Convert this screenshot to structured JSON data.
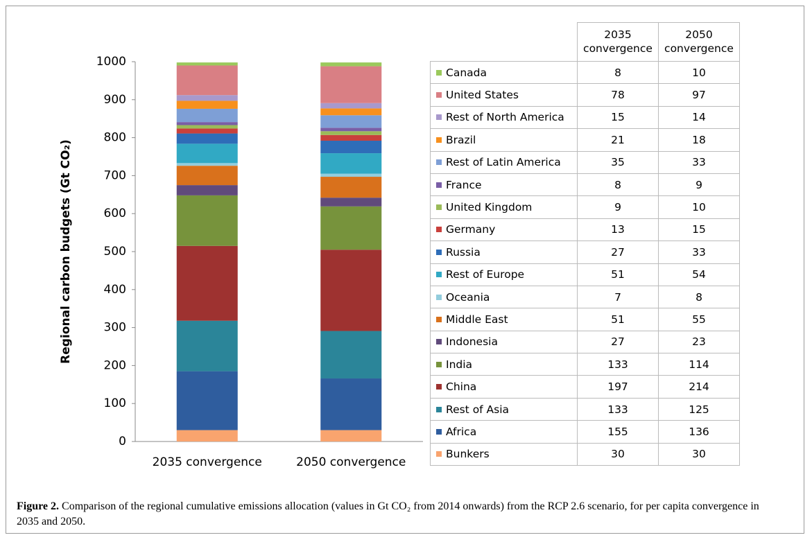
{
  "chart_data": {
    "type": "stacked-bar",
    "y_label": "Regional carbon budgets (Gt CO₂)",
    "categories": [
      "2035 convergence",
      "2050 convergence"
    ],
    "ylim": [
      0,
      1000
    ],
    "yticks": [
      0,
      100,
      200,
      300,
      400,
      500,
      600,
      700,
      800,
      900,
      1000
    ],
    "series": [
      {
        "name": "Bunkers",
        "color": "#f9a46e",
        "values": [
          30,
          30
        ]
      },
      {
        "name": "Africa",
        "color": "#2f5d9e",
        "values": [
          155,
          136
        ]
      },
      {
        "name": "Rest of Asia",
        "color": "#2b8599",
        "values": [
          133,
          125
        ]
      },
      {
        "name": "China",
        "color": "#9e3230",
        "values": [
          197,
          214
        ]
      },
      {
        "name": "India",
        "color": "#77933c",
        "values": [
          133,
          114
        ]
      },
      {
        "name": "Indonesia",
        "color": "#604a7b",
        "values": [
          27,
          23
        ]
      },
      {
        "name": "Middle East",
        "color": "#d9711c",
        "values": [
          51,
          55
        ]
      },
      {
        "name": "Oceania",
        "color": "#93cddd",
        "values": [
          7,
          8
        ]
      },
      {
        "name": "Rest of Europe",
        "color": "#31a9c4",
        "values": [
          51,
          54
        ]
      },
      {
        "name": "Russia",
        "color": "#2e6db8",
        "values": [
          27,
          33
        ]
      },
      {
        "name": "Germany",
        "color": "#c9403c",
        "values": [
          13,
          15
        ]
      },
      {
        "name": "United Kingdom",
        "color": "#9bbb59",
        "values": [
          9,
          10
        ]
      },
      {
        "name": "France",
        "color": "#7a5ea6",
        "values": [
          8,
          9
        ]
      },
      {
        "name": "Rest of Latin America",
        "color": "#7e9fd6",
        "values": [
          35,
          33
        ]
      },
      {
        "name": "Brazil",
        "color": "#f7901e",
        "values": [
          21,
          18
        ]
      },
      {
        "name": "Rest of North America",
        "color": "#a899cc",
        "values": [
          15,
          14
        ]
      },
      {
        "name": "United States",
        "color": "#d97f84",
        "values": [
          78,
          97
        ]
      },
      {
        "name": "Canada",
        "color": "#9bc95c",
        "values": [
          8,
          10
        ]
      }
    ]
  },
  "caption": {
    "label": "Figure 2.",
    "text": "Comparison of the regional cumulative emissions allocation (values in Gt CO₂ from 2014 onwards) from the RCP 2.6 scenario, for per capita convergence in 2035 and 2050."
  }
}
